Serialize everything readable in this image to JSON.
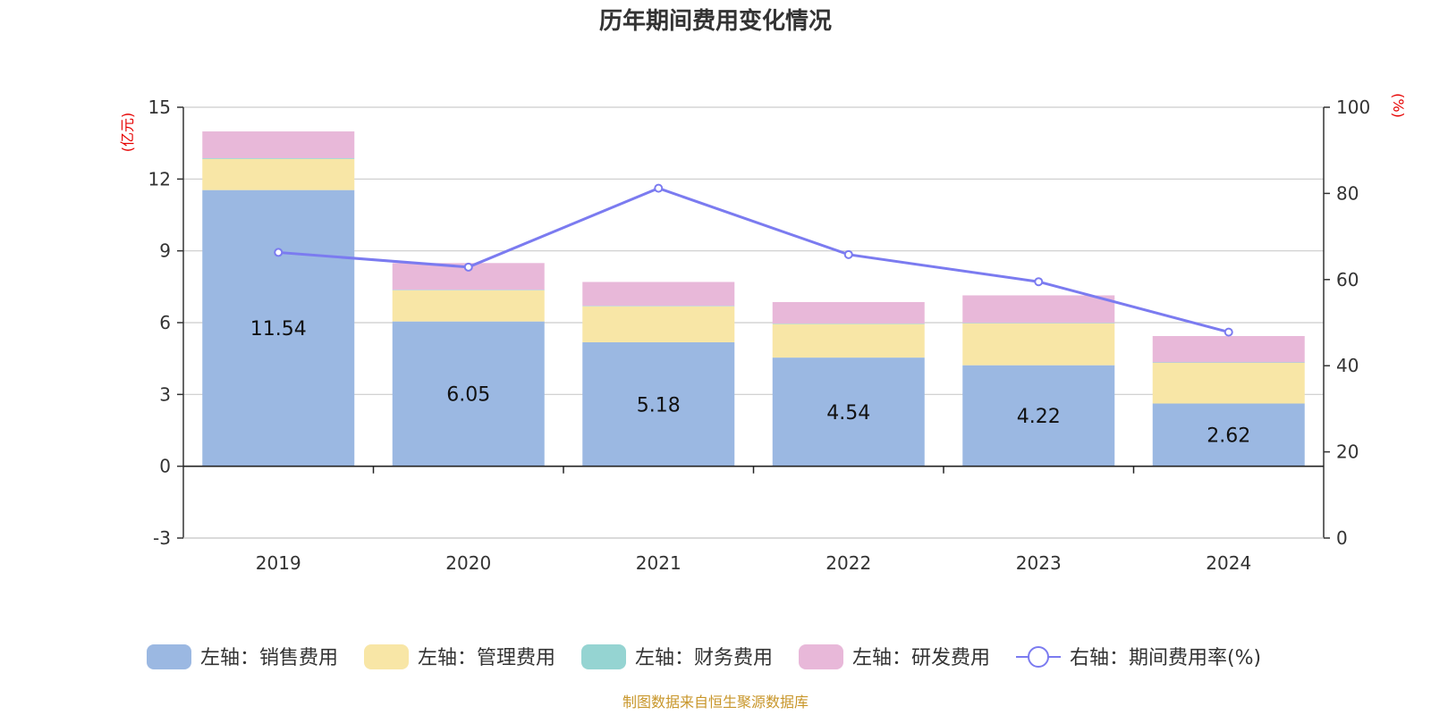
{
  "chart_data": {
    "type": "bar",
    "title": "历年期间费用变化情况",
    "left_unit": "(亿元)",
    "right_unit": "(%)",
    "categories": [
      "2019",
      "2020",
      "2021",
      "2022",
      "2023",
      "2024"
    ],
    "left_axis": {
      "ylim": [
        -3,
        15
      ],
      "ticks": [
        "15",
        "12",
        "9",
        "6",
        "3",
        "0",
        "-3"
      ]
    },
    "right_axis": {
      "ylim": [
        0,
        100
      ],
      "ticks": [
        "100",
        "80",
        "60",
        "40",
        "20",
        "0"
      ]
    },
    "series": [
      {
        "name": "左轴：销售费用",
        "axis": "left",
        "kind": "bar",
        "color": "#9bb8e2",
        "values": [
          11.54,
          6.05,
          5.18,
          4.54,
          4.22,
          2.62
        ],
        "labels": [
          "11.54",
          "6.05",
          "5.18",
          "4.54",
          "4.22",
          "2.62"
        ]
      },
      {
        "name": "左轴：管理费用",
        "axis": "left",
        "kind": "bar",
        "color": "#f8e6a6",
        "values": [
          1.3,
          1.3,
          1.5,
          1.4,
          1.75,
          1.7
        ]
      },
      {
        "name": "左轴：财务费用",
        "axis": "left",
        "kind": "bar",
        "color": "#95d4d2",
        "values": [
          0.03,
          0.02,
          0.02,
          0.02,
          0.02,
          0.02
        ]
      },
      {
        "name": "左轴：研发费用",
        "axis": "left",
        "kind": "bar",
        "color": "#e8b8d9",
        "values": [
          1.12,
          1.12,
          1.0,
          0.9,
          1.15,
          1.1
        ]
      },
      {
        "name": "右轴：期间费用率(%)",
        "axis": "right",
        "kind": "line",
        "color": "#7b7bf0",
        "values": [
          66.3,
          62.9,
          81.2,
          65.8,
          59.5,
          47.8
        ]
      }
    ]
  },
  "footer": {
    "source": "制图数据来自恒生聚源数据库"
  }
}
